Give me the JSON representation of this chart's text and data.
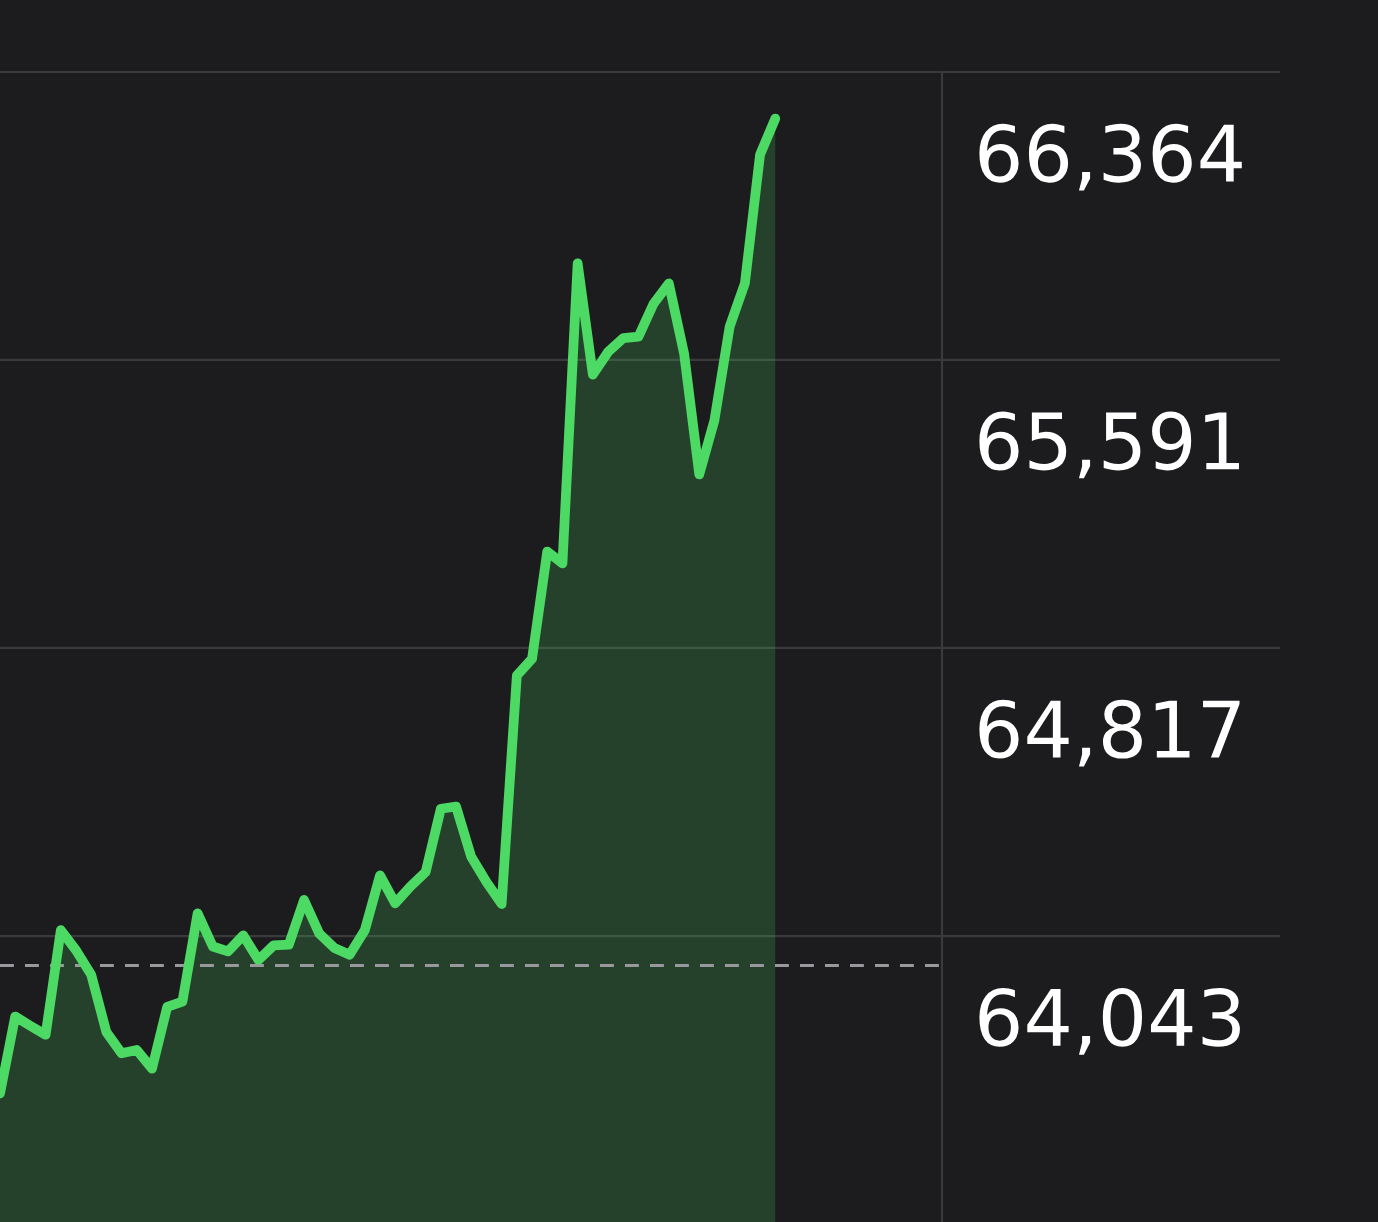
{
  "chart_data": {
    "type": "area",
    "tick_labels": "y",
    "grid": "y",
    "categories": [
      null,
      null,
      null,
      null,
      null,
      null,
      null,
      null,
      null,
      null,
      null,
      null,
      null,
      null,
      null,
      null,
      null,
      null,
      null,
      null,
      null,
      null,
      null,
      null,
      null,
      null,
      null,
      null,
      null,
      null,
      null,
      null,
      null,
      null,
      null,
      null,
      null,
      null,
      null,
      null,
      null,
      null,
      null,
      null,
      null,
      null,
      null,
      null,
      null,
      null,
      null,
      null
    ],
    "series": [
      {
        "color": "#4cd964",
        "values": [
          63620,
          63827,
          63802,
          63778,
          64059,
          64005,
          63939,
          63785,
          63728,
          63737,
          63687,
          63853,
          63867,
          64104,
          64015,
          64002,
          64045,
          63979,
          64018,
          64020,
          64140,
          64050,
          64011,
          63993,
          64059,
          64206,
          64131,
          64176,
          64215,
          64385,
          64391,
          64256,
          64188,
          64129,
          64743,
          64788,
          65076,
          65044,
          65850,
          65551,
          65612,
          65649,
          65653,
          65742,
          65796,
          65608,
          65283,
          65429,
          65680,
          65796,
          66142,
          66239
        ]
      }
    ],
    "ylim": [
      63275,
      66364
    ],
    "yticks": [
      {
        "value": 66364,
        "label": "66,364"
      },
      {
        "value": 65591,
        "label": "65,591"
      },
      {
        "value": 64817,
        "label": "64,817"
      },
      {
        "value": 64043,
        "label": "64,043"
      }
    ],
    "ref_lines": [
      {
        "axis": "y",
        "value": 63964,
        "color": "#98989d",
        "line_style": "dashed"
      }
    ]
  }
}
